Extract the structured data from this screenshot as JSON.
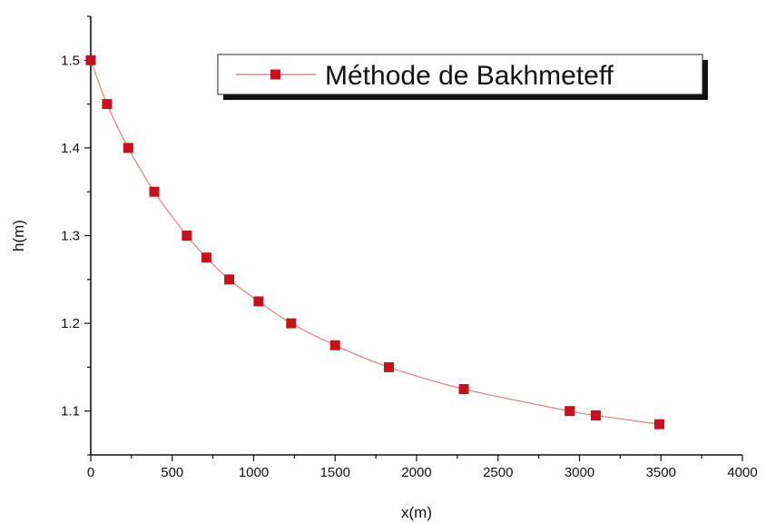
{
  "chart_data": {
    "type": "line",
    "title": "",
    "xlabel": "x(m)",
    "ylabel": "h(m)",
    "xlim": [
      0,
      4000
    ],
    "ylim": [
      1.05,
      1.55
    ],
    "xticks": [
      0,
      500,
      1000,
      1500,
      2000,
      2500,
      3000,
      3500,
      4000
    ],
    "xtick_labels": [
      "0",
      "500",
      "1000",
      "1500",
      "2000",
      "2500",
      "3000",
      "3500",
      "4000"
    ],
    "yticks": [
      1.1,
      1.2,
      1.3,
      1.4,
      1.5
    ],
    "ytick_labels": [
      "1.1",
      "1.2",
      "1.3",
      "1.4",
      "1.5"
    ],
    "grid": false,
    "legend_position": "top-right",
    "series": [
      {
        "name": "Méthode de Bakhmeteff",
        "marker": "square",
        "marker_color": "#c8101e",
        "line_color": "#d98a8f",
        "x": [
          0,
          100,
          230,
          390,
          590,
          710,
          850,
          1030,
          1230,
          1500,
          1830,
          2290,
          2940,
          3100,
          3490
        ],
        "y": [
          1.5,
          1.45,
          1.4,
          1.35,
          1.3,
          1.275,
          1.25,
          1.225,
          1.2,
          1.175,
          1.15,
          1.125,
          1.1,
          1.095,
          1.085
        ]
      }
    ]
  }
}
